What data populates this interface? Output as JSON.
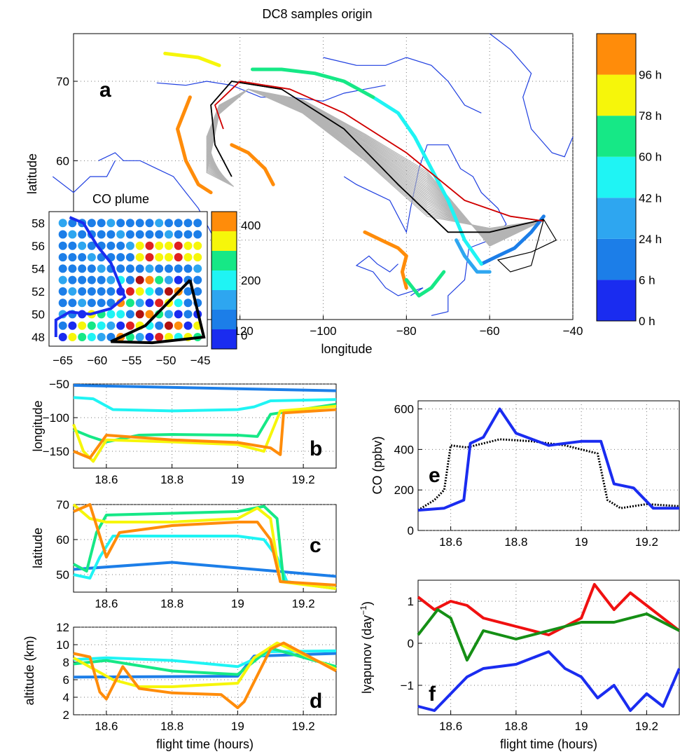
{
  "figure": {
    "title": "DC8 samples origin"
  },
  "chart_data": [
    {
      "panel": "a",
      "type": "line",
      "title": "DC8 samples origin",
      "xlabel": "longitude",
      "ylabel": "latitude",
      "xlim": [
        -160,
        -40
      ],
      "ylim": [
        40,
        76
      ],
      "xticks": [
        -120,
        -100,
        -80,
        -60,
        -40
      ],
      "yticks": [
        50,
        60,
        70
      ],
      "grid": true,
      "colorbar": {
        "labels": [
          "0 h",
          "6 h",
          "24 h",
          "42 h",
          "60 h",
          "78 h",
          "96 h"
        ],
        "colors": [
          "#1a2cf0",
          "#1c7ee8",
          "#2ea6f0",
          "#1ff4f4",
          "#16e886",
          "#f6f60a",
          "#ff8c0a"
        ]
      },
      "series": [
        {
          "color": "#000000",
          "x": [
            -47,
            -52,
            -60,
            -70,
            -82,
            -95,
            -110,
            -122,
            -127,
            -126,
            -122
          ],
          "y": [
            52.6,
            52,
            51,
            51,
            57,
            64,
            69,
            70,
            67,
            62,
            58
          ]
        },
        {
          "color": "#d00000",
          "x": [
            -47,
            -55,
            -66,
            -80,
            -95,
            -108,
            -120,
            -126,
            -124
          ],
          "y": [
            52.4,
            53,
            55,
            61,
            66,
            69,
            70,
            67,
            64
          ]
        }
      ]
    },
    {
      "panel": "a-inset",
      "type": "scatter",
      "title": "CO plume",
      "xlim": [
        -67,
        -44
      ],
      "ylim": [
        47.2,
        59
      ],
      "xticks": [
        -65,
        -60,
        -55,
        -50,
        -45
      ],
      "yticks": [
        48,
        50,
        52,
        54,
        56,
        58
      ],
      "colorbar_ticks": [
        0,
        200,
        400
      ],
      "colorbar_colors": [
        "#1a2cf0",
        "#1c7ee8",
        "#2ea6f0",
        "#1ff4f4",
        "#16e886",
        "#f6f60a",
        "#ff8c0a"
      ]
    },
    {
      "panel": "b",
      "type": "line",
      "ylabel": "longitude",
      "xlim": [
        18.5,
        19.3
      ],
      "ylim": [
        -175,
        -50
      ],
      "xticks": [
        18.6,
        18.8,
        19,
        19.2
      ],
      "yticks": [
        -50,
        -100,
        -150
      ],
      "series": [
        {
          "color": "#1c7ee8",
          "x": [
            18.5,
            19.3
          ],
          "y": [
            -52,
            -60
          ]
        },
        {
          "color": "#1ff4f4",
          "x": [
            18.5,
            18.56,
            18.62,
            18.8,
            19.0,
            19.05,
            19.1,
            19.3
          ],
          "y": [
            -70,
            -72,
            -88,
            -90,
            -88,
            -84,
            -75,
            -73
          ]
        },
        {
          "color": "#16e886",
          "x": [
            18.5,
            18.55,
            18.6,
            18.7,
            18.8,
            19.0,
            19.06,
            19.1,
            19.3
          ],
          "y": [
            -118,
            -128,
            -136,
            -126,
            -125,
            -126,
            -128,
            -95,
            -80
          ]
        },
        {
          "color": "#f6f60a",
          "x": [
            18.5,
            18.53,
            18.56,
            18.6,
            18.8,
            19.0,
            19.08,
            19.13,
            19.3
          ],
          "y": [
            -110,
            -150,
            -165,
            -133,
            -136,
            -140,
            -150,
            -90,
            -83
          ]
        },
        {
          "color": "#ff8c0a",
          "x": [
            18.5,
            18.55,
            18.6,
            18.8,
            19.0,
            19.1,
            19.13,
            19.14,
            19.3
          ],
          "y": [
            -150,
            -160,
            -126,
            -133,
            -137,
            -145,
            -155,
            -93,
            -88
          ]
        }
      ]
    },
    {
      "panel": "c",
      "type": "line",
      "ylabel": "latitude",
      "xlim": [
        18.5,
        19.3
      ],
      "ylim": [
        45,
        70
      ],
      "xticks": [
        18.6,
        18.8,
        19,
        19.2
      ],
      "yticks": [
        50,
        60,
        70
      ],
      "series": [
        {
          "color": "#1c7ee8",
          "x": [
            18.5,
            18.8,
            19.3
          ],
          "y": [
            51.5,
            53.5,
            49.5
          ]
        },
        {
          "color": "#1ff4f4",
          "x": [
            18.5,
            18.55,
            18.58,
            18.62,
            19.0,
            19.08,
            19.12,
            19.15,
            19.3
          ],
          "y": [
            50,
            49,
            55,
            61,
            61,
            60,
            55,
            48,
            46
          ]
        },
        {
          "color": "#16e886",
          "x": [
            18.5,
            18.54,
            18.57,
            18.6,
            18.8,
            19.0,
            19.08,
            19.12,
            19.14,
            19.3
          ],
          "y": [
            53,
            51,
            62,
            67,
            67.5,
            68,
            69.5,
            66,
            48,
            46
          ]
        },
        {
          "color": "#f6f60a",
          "x": [
            18.5,
            18.55,
            18.6,
            18.8,
            19.0,
            19.06,
            19.1,
            19.13,
            19.3
          ],
          "y": [
            70,
            66,
            65,
            65,
            66,
            69,
            66,
            48,
            46
          ]
        },
        {
          "color": "#ff8c0a",
          "x": [
            18.5,
            18.55,
            18.6,
            18.64,
            18.8,
            19.0,
            19.06,
            19.1,
            19.13,
            19.3
          ],
          "y": [
            68,
            70,
            55,
            62,
            64,
            65,
            65,
            60,
            48,
            47
          ]
        }
      ]
    },
    {
      "panel": "d",
      "type": "line",
      "ylabel": "altitude (km)",
      "xlabel": "flight time (hours)",
      "xlim": [
        18.5,
        19.3
      ],
      "ylim": [
        2,
        12
      ],
      "xticks": [
        18.6,
        18.8,
        19,
        19.2
      ],
      "yticks": [
        2,
        4,
        6,
        8,
        10,
        12
      ],
      "series": [
        {
          "color": "#1c7ee8",
          "x": [
            18.5,
            19.0,
            19.05,
            19.3
          ],
          "y": [
            6.3,
            6.4,
            8.7,
            9.0
          ]
        },
        {
          "color": "#1ff4f4",
          "x": [
            18.5,
            18.6,
            18.8,
            19.0,
            19.1,
            19.3
          ],
          "y": [
            8.3,
            8.5,
            8.2,
            7.5,
            9.2,
            9.3
          ]
        },
        {
          "color": "#16e886",
          "x": [
            18.5,
            18.6,
            18.8,
            19.0,
            19.1,
            19.3
          ],
          "y": [
            7.8,
            8.2,
            7.0,
            6.6,
            9.6,
            7.5
          ]
        },
        {
          "color": "#f6f60a",
          "x": [
            18.5,
            18.62,
            18.7,
            18.8,
            19.0,
            19.05,
            19.12,
            19.3
          ],
          "y": [
            8.5,
            6.0,
            5.2,
            5.2,
            5.6,
            8.5,
            10.2,
            7.2
          ]
        },
        {
          "color": "#ff8c0a",
          "x": [
            18.5,
            18.55,
            18.58,
            18.6,
            18.65,
            18.7,
            18.8,
            18.95,
            19.0,
            19.02,
            19.1,
            19.14,
            19.3
          ],
          "y": [
            9.0,
            8.6,
            4.6,
            3.8,
            7.5,
            5.0,
            4.5,
            4.3,
            2.8,
            3.5,
            9.5,
            10.2,
            7.0
          ]
        }
      ]
    },
    {
      "panel": "e",
      "type": "line",
      "ylabel": "CO (ppbv)",
      "xlim": [
        18.5,
        19.3
      ],
      "ylim": [
        0,
        640
      ],
      "xticks": [
        18.6,
        18.8,
        19,
        19.2
      ],
      "yticks": [
        0,
        200,
        400,
        600
      ],
      "series": [
        {
          "color": "#000000",
          "x": [
            18.5,
            18.55,
            18.58,
            18.6,
            18.65,
            18.75,
            18.85,
            18.95,
            19.05,
            19.08,
            19.12,
            19.2,
            19.3
          ],
          "y": [
            100,
            150,
            200,
            420,
            410,
            450,
            440,
            420,
            380,
            150,
            110,
            130,
            120
          ]
        },
        {
          "color": "#1a2cf0",
          "x": [
            18.5,
            18.58,
            18.64,
            18.66,
            18.7,
            18.75,
            18.8,
            18.9,
            19.0,
            19.06,
            19.1,
            19.16,
            19.22,
            19.3
          ],
          "y": [
            100,
            110,
            150,
            430,
            460,
            600,
            480,
            420,
            440,
            440,
            230,
            210,
            110,
            110
          ]
        }
      ]
    },
    {
      "panel": "f",
      "type": "line",
      "ylabel": "lyapunov (day",
      "ylabel_sup": "−1",
      "ylabel_close": ")",
      "xlabel": "flight time (hours)",
      "xlim": [
        18.5,
        19.3
      ],
      "ylim": [
        -1.7,
        1.5
      ],
      "xticks": [
        18.6,
        18.8,
        19,
        19.2
      ],
      "yticks": [
        1,
        0,
        -1
      ],
      "series": [
        {
          "color": "#f01010",
          "x": [
            18.5,
            18.55,
            18.6,
            18.65,
            18.7,
            18.8,
            18.9,
            18.95,
            19.0,
            19.04,
            19.1,
            19.15,
            19.2,
            19.3
          ],
          "y": [
            1.1,
            0.8,
            1.0,
            0.9,
            0.6,
            0.4,
            0.2,
            0.4,
            0.6,
            1.4,
            0.8,
            1.2,
            0.9,
            0.3
          ]
        },
        {
          "color": "#158f15",
          "x": [
            18.5,
            18.56,
            18.6,
            18.65,
            18.7,
            18.8,
            18.9,
            19.0,
            19.1,
            19.2,
            19.3
          ],
          "y": [
            0.2,
            0.8,
            0.6,
            -0.4,
            0.3,
            0.1,
            0.3,
            0.5,
            0.5,
            0.7,
            0.3
          ]
        },
        {
          "color": "#1a2cf0",
          "x": [
            18.5,
            18.55,
            18.6,
            18.65,
            18.7,
            18.8,
            18.9,
            18.95,
            19.0,
            19.05,
            19.1,
            19.15,
            19.2,
            19.25,
            19.3
          ],
          "y": [
            -1.5,
            -1.6,
            -1.2,
            -0.8,
            -0.6,
            -0.5,
            -0.2,
            -0.6,
            -0.8,
            -1.3,
            -1.0,
            -1.6,
            -1.2,
            -1.5,
            -0.6
          ]
        }
      ]
    }
  ]
}
